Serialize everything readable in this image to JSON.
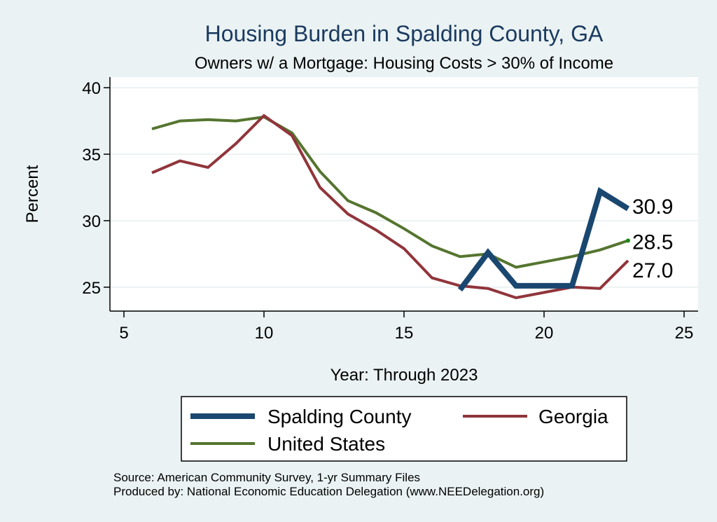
{
  "chart_data": {
    "type": "line",
    "title": "Housing Burden in Spalding County, GA",
    "subtitle": "Owners w/ a Mortgage: Housing Costs > 30% of Income",
    "xlabel": "Year: Through 2023",
    "ylabel": "Percent",
    "xlim": [
      4.5,
      25.5
    ],
    "ylim": [
      23.2,
      40.8
    ],
    "xticks": [
      5,
      10,
      15,
      20,
      25
    ],
    "yticks": [
      25,
      30,
      35,
      40
    ],
    "grid": true,
    "series": [
      {
        "name": "Spalding County",
        "color": "#1a476f",
        "x": [
          17,
          18,
          19,
          20,
          21,
          22,
          23
        ],
        "values": [
          24.8,
          27.6,
          25.1,
          25.1,
          25.1,
          32.2,
          30.9
        ],
        "end_label": "30.9"
      },
      {
        "name": "Georgia",
        "color": "#90353b",
        "x": [
          6,
          7,
          8,
          9,
          10,
          11,
          12,
          13,
          14,
          15,
          16,
          17,
          18,
          19,
          20,
          21,
          22,
          23
        ],
        "values": [
          33.6,
          34.5,
          34.0,
          35.8,
          37.9,
          36.4,
          32.5,
          30.5,
          29.3,
          27.9,
          25.7,
          25.1,
          24.9,
          24.2,
          24.6,
          25.0,
          24.9,
          27.0
        ],
        "end_label": "27.0"
      },
      {
        "name": "United States",
        "color": "#55752f",
        "x": [
          6,
          7,
          8,
          9,
          10,
          11,
          12,
          13,
          14,
          15,
          16,
          17,
          18,
          19,
          20,
          21,
          22,
          23
        ],
        "values": [
          36.9,
          37.5,
          37.6,
          37.5,
          37.8,
          36.6,
          33.7,
          31.5,
          30.6,
          29.4,
          28.1,
          27.3,
          27.5,
          26.5,
          26.9,
          27.3,
          27.8,
          28.5
        ],
        "end_label": "28.5"
      }
    ],
    "source": "Source: American Community Survey, 1-yr Summary Files",
    "produced_by": "Produced by: National Economic Education Delegation (www.NEEDelegation.org)"
  }
}
